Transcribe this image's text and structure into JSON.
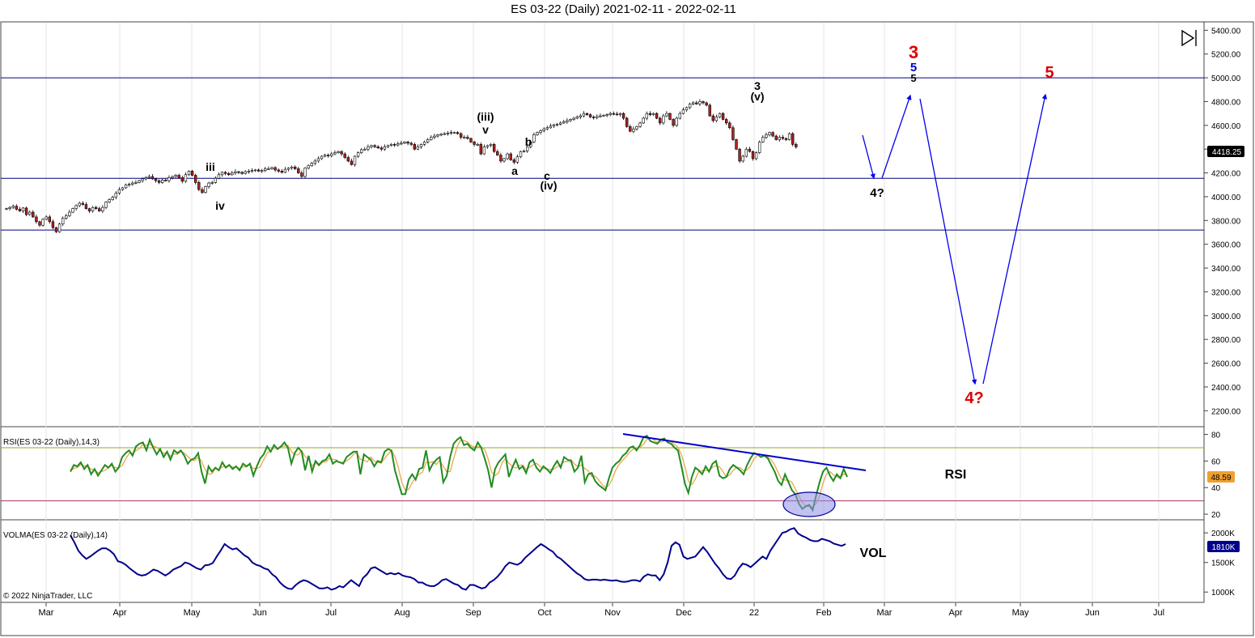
{
  "title": "ES 03-22 (Daily)  2021-02-11 - 2022-02-11",
  "copyright": "© 2022 NinjaTrader, LLC",
  "colors": {
    "up": "#ffffff",
    "down": "#b22222",
    "wick": "#000000",
    "hline": "#000080",
    "arrow": "#0000ee",
    "rsi": "#228b22",
    "rsi_avg": "#e8a33c",
    "rsi_ob": "#9aa820",
    "rsi_os": "#aa3366",
    "trend": "#0000cc",
    "vol": "#00008b",
    "red_label": "#e00000",
    "blue_label": "#0000cc",
    "tag_price": "#000000",
    "tag_rsi": "#f0a030",
    "tag_vol": "#00008b",
    "highlight_fill": "#8e8ee8",
    "highlight_stroke": "#000099"
  },
  "chart_data": [
    {
      "type": "candlestick",
      "panel": "price",
      "ylim": [
        2100,
        5450
      ],
      "y_ticks": [
        "5400.00",
        "5200.00",
        "5000.00",
        "4800.00",
        "4600.00",
        "4400.00",
        "4200.00",
        "4000.00",
        "3800.00",
        "3600.00",
        "3400.00",
        "3200.00",
        "3000.00",
        "2800.00",
        "2600.00",
        "2400.00",
        "2200.00"
      ],
      "last_price_tag": "4418.25",
      "horizontal_lines": [
        5000,
        4155,
        3720
      ],
      "x_labels": [
        "Mar",
        "Apr",
        "May",
        "Jun",
        "Jul",
        "Aug",
        "Sep",
        "Oct",
        "Nov",
        "Dec",
        "22",
        "Feb",
        "Mar",
        "Apr",
        "May",
        "Jun",
        "Jul"
      ],
      "x_start": "2021-02-11",
      "x_end": "2022-02-11",
      "closes": [
        3900,
        3910,
        3920,
        3895,
        3880,
        3905,
        3850,
        3870,
        3830,
        3790,
        3760,
        3810,
        3830,
        3790,
        3740,
        3705,
        3770,
        3820,
        3840,
        3870,
        3900,
        3925,
        3945,
        3935,
        3900,
        3880,
        3910,
        3900,
        3880,
        3910,
        3955,
        3975,
        3995,
        4030,
        4060,
        4075,
        4100,
        4105,
        4115,
        4120,
        4135,
        4150,
        4160,
        4170,
        4150,
        4135,
        4120,
        4140,
        4135,
        4160,
        4170,
        4180,
        4160,
        4130,
        4185,
        4215,
        4180,
        4120,
        4060,
        4035,
        4085,
        4115,
        4120,
        4155,
        4185,
        4205,
        4195,
        4185,
        4200,
        4210,
        4205,
        4195,
        4210,
        4215,
        4220,
        4225,
        4215,
        4220,
        4235,
        4235,
        4245,
        4225,
        4215,
        4205,
        4230,
        4240,
        4250,
        4235,
        4200,
        4170,
        4240,
        4260,
        4280,
        4300,
        4320,
        4340,
        4350,
        4345,
        4360,
        4370,
        4380,
        4360,
        4330,
        4300,
        4270,
        4340,
        4370,
        4395,
        4400,
        4420,
        4430,
        4420,
        4410,
        4400,
        4420,
        4430,
        4440,
        4435,
        4445,
        4450,
        4460,
        4450,
        4440,
        4400,
        4420,
        4440,
        4460,
        4480,
        4500,
        4510,
        4520,
        4525,
        4530,
        4535,
        4540,
        4540,
        4530,
        4500,
        4500,
        4490,
        4460,
        4440,
        4440,
        4360,
        4420,
        4430,
        4440,
        4380,
        4350,
        4300,
        4320,
        4360,
        4310,
        4290,
        4335,
        4380,
        4385,
        4420,
        4460,
        4520,
        4540,
        4555,
        4570,
        4580,
        4595,
        4605,
        4610,
        4620,
        4630,
        4640,
        4650,
        4660,
        4670,
        4680,
        4700,
        4690,
        4670,
        4665,
        4675,
        4680,
        4685,
        4690,
        4700,
        4695,
        4690,
        4700,
        4660,
        4590,
        4550,
        4570,
        4590,
        4620,
        4660,
        4700,
        4690,
        4700,
        4660,
        4620,
        4680,
        4700,
        4650,
        4600,
        4660,
        4700,
        4730,
        4750,
        4780,
        4790,
        4780,
        4800,
        4790,
        4770,
        4680,
        4640,
        4670,
        4700,
        4650,
        4620,
        4580,
        4480,
        4400,
        4300,
        4340,
        4400,
        4380,
        4320,
        4370,
        4460,
        4500,
        4520,
        4540,
        4510,
        4480,
        4500,
        4490,
        4480,
        4530,
        4440,
        4418
      ]
    },
    {
      "type": "line",
      "panel": "rsi",
      "label": "RSI(ES 03-22 (Daily),14,3)",
      "ylim": [
        17,
        84
      ],
      "y_ticks": [
        "80",
        "60",
        "40",
        "20"
      ],
      "levels": [
        70,
        30
      ],
      "last_value_tag": "48.59",
      "values": [
        52,
        57,
        56,
        59,
        54,
        57,
        50,
        54,
        49,
        53,
        57,
        55,
        58,
        52,
        55,
        63,
        66,
        68,
        64,
        71,
        73,
        74,
        68,
        76,
        70,
        65,
        69,
        63,
        67,
        61,
        68,
        66,
        68,
        64,
        58,
        61,
        62,
        66,
        52,
        43,
        56,
        52,
        55,
        53,
        59,
        55,
        57,
        54,
        56,
        53,
        58,
        56,
        58,
        49,
        56,
        62,
        65,
        71,
        67,
        72,
        69,
        71,
        74,
        70,
        58,
        66,
        70,
        67,
        53,
        64,
        52,
        60,
        57,
        60,
        61,
        65,
        58,
        60,
        59,
        58,
        63,
        65,
        67,
        67,
        50,
        65,
        63,
        61,
        56,
        60,
        59,
        67,
        69,
        68,
        53,
        44,
        35,
        35,
        46,
        50,
        46,
        54,
        55,
        68,
        53,
        58,
        61,
        63,
        44,
        49,
        63,
        73,
        76,
        78,
        72,
        73,
        70,
        68,
        74,
        70,
        62,
        53,
        40,
        54,
        59,
        62,
        65,
        48,
        55,
        61,
        54,
        56,
        51,
        59,
        61,
        55,
        52,
        56,
        54,
        51,
        56,
        60,
        55,
        63,
        61,
        60,
        52,
        55,
        64,
        44,
        50,
        51,
        45,
        42,
        40,
        38,
        47,
        55,
        58,
        60,
        64,
        66,
        70,
        71,
        68,
        72,
        78,
        79,
        75,
        74,
        73,
        76,
        77,
        74,
        73,
        70,
        68,
        56,
        43,
        36,
        48,
        55,
        53,
        50,
        56,
        52,
        58,
        60,
        49,
        47,
        48,
        54,
        57,
        55,
        53,
        50,
        57,
        62,
        66,
        65,
        63,
        64,
        62,
        57,
        52,
        45,
        42,
        50,
        44,
        38,
        35,
        28,
        24,
        26,
        27,
        23,
        34,
        44,
        52,
        55,
        49,
        45,
        50,
        47,
        54,
        48
      ]
    },
    {
      "type": "line",
      "panel": "volume",
      "label": "VOLMA(ES 03-22 (Daily),14)",
      "ylim": [
        880000,
        2180000
      ],
      "y_ticks": [
        "2000K",
        "1500K",
        "1000K"
      ],
      "last_value_tag": "1810K",
      "values": [
        1960000,
        1840000,
        1700000,
        1620000,
        1560000,
        1600000,
        1650000,
        1700000,
        1740000,
        1740000,
        1700000,
        1640000,
        1520000,
        1500000,
        1460000,
        1400000,
        1350000,
        1300000,
        1280000,
        1290000,
        1330000,
        1380000,
        1360000,
        1320000,
        1280000,
        1320000,
        1380000,
        1410000,
        1440000,
        1500000,
        1480000,
        1440000,
        1400000,
        1380000,
        1450000,
        1460000,
        1490000,
        1600000,
        1700000,
        1810000,
        1760000,
        1720000,
        1740000,
        1680000,
        1620000,
        1580000,
        1500000,
        1460000,
        1440000,
        1400000,
        1380000,
        1300000,
        1250000,
        1160000,
        1100000,
        1060000,
        1050000,
        1120000,
        1170000,
        1200000,
        1180000,
        1140000,
        1100000,
        1060000,
        1060000,
        1080000,
        1040000,
        1060000,
        1100000,
        1080000,
        1140000,
        1200000,
        1150000,
        1100000,
        1240000,
        1300000,
        1400000,
        1420000,
        1380000,
        1340000,
        1300000,
        1320000,
        1300000,
        1320000,
        1280000,
        1260000,
        1250000,
        1220000,
        1160000,
        1160000,
        1120000,
        1100000,
        1100000,
        1140000,
        1200000,
        1220000,
        1180000,
        1140000,
        1120000,
        1060000,
        1040000,
        1120000,
        1120000,
        1090000,
        1060000,
        1080000,
        1160000,
        1200000,
        1260000,
        1340000,
        1440000,
        1500000,
        1480000,
        1460000,
        1500000,
        1580000,
        1640000,
        1700000,
        1760000,
        1810000,
        1770000,
        1720000,
        1680000,
        1600000,
        1560000,
        1500000,
        1440000,
        1380000,
        1320000,
        1280000,
        1220000,
        1200000,
        1210000,
        1210000,
        1200000,
        1210000,
        1200000,
        1190000,
        1200000,
        1180000,
        1170000,
        1180000,
        1200000,
        1200000,
        1180000,
        1260000,
        1300000,
        1280000,
        1280000,
        1200000,
        1300000,
        1500000,
        1780000,
        1840000,
        1800000,
        1600000,
        1560000,
        1580000,
        1600000,
        1680000,
        1760000,
        1680000,
        1580000,
        1480000,
        1400000,
        1300000,
        1230000,
        1220000,
        1280000,
        1400000,
        1480000,
        1460000,
        1420000,
        1480000,
        1540000,
        1600000,
        1560000,
        1700000,
        1800000,
        1900000,
        2000000,
        2020000,
        2060000,
        2080000,
        1990000,
        1950000,
        1920000,
        1880000,
        1860000,
        1860000,
        1900000,
        1880000,
        1860000,
        1820000,
        1800000,
        1780000,
        1810000
      ]
    }
  ],
  "annotations": [
    {
      "key": "iii_small",
      "text": "iii",
      "color": "#000000"
    },
    {
      "key": "iv_small",
      "text": "iv",
      "color": "#000000"
    },
    {
      "key": "iii_par",
      "text": "(iii)",
      "color": "#000000"
    },
    {
      "key": "v_small",
      "text": "v",
      "color": "#000000"
    },
    {
      "key": "a",
      "text": "a",
      "color": "#000000"
    },
    {
      "key": "b",
      "text": "b",
      "color": "#000000"
    },
    {
      "key": "c",
      "text": "c",
      "color": "#000000"
    },
    {
      "key": "iv_par",
      "text": "(iv)",
      "color": "#000000"
    },
    {
      "key": "three_small",
      "text": "3",
      "color": "#000000"
    },
    {
      "key": "v_par",
      "text": "(v)",
      "color": "#000000"
    },
    {
      "key": "four_q_black",
      "text": "4?",
      "color": "#000000"
    },
    {
      "key": "three_red",
      "text": "3",
      "color": "#e00000"
    },
    {
      "key": "five_blue",
      "text": "5",
      "color": "#0000cc"
    },
    {
      "key": "five_black",
      "text": "5",
      "color": "#000000"
    },
    {
      "key": "five_red",
      "text": "5",
      "color": "#e00000"
    },
    {
      "key": "four_q_red",
      "text": "4?",
      "color": "#e00000"
    },
    {
      "key": "rsi_label",
      "text": "RSI",
      "color": "#000000"
    },
    {
      "key": "vol_label",
      "text": "VOL",
      "color": "#000000"
    }
  ]
}
